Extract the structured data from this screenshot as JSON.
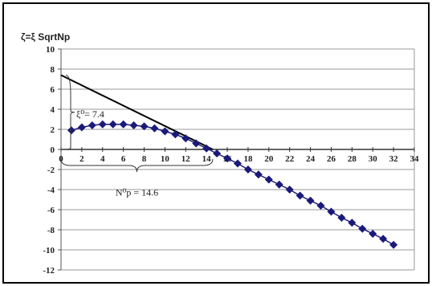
{
  "chart_data": {
    "type": "scatter",
    "title": "",
    "ylabel": "ζ=ξ SqrtNp",
    "xlabel": "",
    "xlim": [
      0,
      34
    ],
    "ylim": [
      -12,
      10
    ],
    "x_ticks": [
      "0",
      "2",
      "4",
      "6",
      "8",
      "10",
      "12",
      "14",
      "16",
      "18",
      "20",
      "22",
      "24",
      "26",
      "28",
      "30",
      "32",
      "34"
    ],
    "y_ticks": [
      "10",
      "8",
      "6",
      "4",
      "2",
      "0",
      "-2",
      "-4",
      "-6",
      "-8",
      "-10",
      "-12"
    ],
    "grid": "horizontal",
    "series": [
      {
        "name": "",
        "color": "#1a1a7a",
        "marker": "diamond",
        "x": [
          1,
          2,
          3,
          4,
          5,
          6,
          7,
          8,
          9,
          10,
          11,
          12,
          13,
          14,
          15,
          16,
          17,
          18,
          19,
          20,
          21,
          22,
          23,
          24,
          25,
          26,
          27,
          28,
          29,
          30,
          31,
          32
        ],
        "y": [
          1.9,
          2.2,
          2.4,
          2.5,
          2.5,
          2.5,
          2.4,
          2.3,
          2.1,
          1.8,
          1.5,
          1.1,
          0.6,
          0.1,
          -0.4,
          -0.9,
          -1.4,
          -2.0,
          -2.5,
          -3.0,
          -3.5,
          -4.0,
          -4.6,
          -5.1,
          -5.6,
          -6.2,
          -6.8,
          -7.3,
          -7.9,
          -8.4,
          -8.9,
          -9.5
        ]
      },
      {
        "name": "",
        "color": "#000000",
        "marker": "none",
        "x": [
          0,
          14.6
        ],
        "y": [
          7.4,
          0
        ]
      }
    ],
    "annotations": [
      {
        "text": "ξ⁰= 7.4"
      },
      {
        "text": "N⁰p = 14.6"
      }
    ]
  }
}
